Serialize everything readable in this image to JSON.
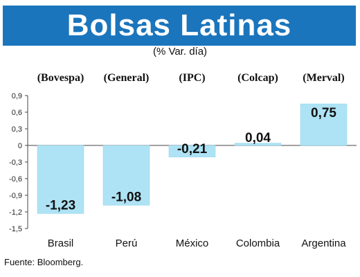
{
  "colors": {
    "title_bar": "#1b75bc",
    "bar": "#aee3f5",
    "bar_border": "#8ad3ec",
    "axis": "#444444"
  },
  "header": {
    "title": "Bolsas Latinas",
    "subtitle": "(% Var. día)"
  },
  "source": "Fuente: Bloomberg.",
  "chart_data": {
    "type": "bar",
    "title": "Bolsas Latinas",
    "subtitle": "(% Var. día)",
    "categories": [
      "Brasil",
      "Perú",
      "México",
      "Colombia",
      "Argentina"
    ],
    "index_labels": [
      "(Bovespa)",
      "(General)",
      "(IPC)",
      "(Colcap)",
      "(Merval)"
    ],
    "values": [
      -1.23,
      -1.08,
      -0.21,
      0.04,
      0.75
    ],
    "value_labels": [
      "-1,23",
      "-1,08",
      "-0,21",
      "0,04",
      "0,75"
    ],
    "yticks": [
      "0,9",
      "0,6",
      "0,3",
      "0",
      "-0,3",
      "-0,6",
      "-0,9",
      "-1,2",
      "-1,5"
    ],
    "ytick_values": [
      0.9,
      0.6,
      0.3,
      0,
      -0.3,
      -0.6,
      -0.9,
      -1.2,
      -1.5
    ],
    "ylim": [
      -1.5,
      0.9
    ],
    "grid": false,
    "legend": "none",
    "xlabel": "",
    "ylabel": ""
  }
}
